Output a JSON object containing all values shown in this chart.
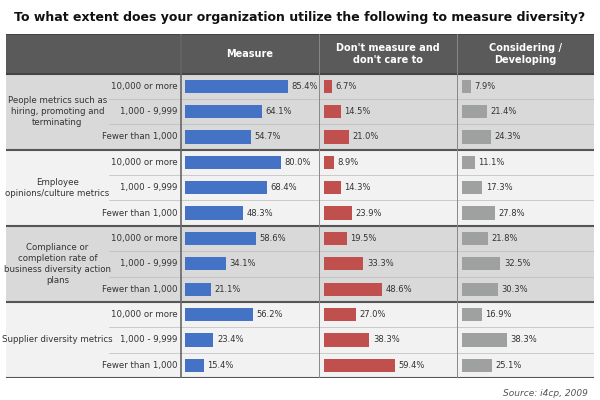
{
  "title": "To what extent does your organization utilize the following to measure diversity?",
  "header": [
    "Measure",
    "Don't measure and\ndon't care to",
    "Considering /\nDeveloping"
  ],
  "header_bg": "#5a5a5a",
  "categories": [
    "People metrics such as\nhiring, promoting and\nterminating",
    "Employee\nopinions/culture metrics",
    "Compliance or\ncompletion rate of\nbusiness diversity action\nplans",
    "Supplier diversity metrics"
  ],
  "size_labels": [
    "10,000 or more",
    "1,000 - 9,999",
    "Fewer than 1,000"
  ],
  "data": [
    [
      [
        85.4,
        6.7,
        7.9
      ],
      [
        64.1,
        14.5,
        21.4
      ],
      [
        54.7,
        21.0,
        24.3
      ]
    ],
    [
      [
        80.0,
        8.9,
        11.1
      ],
      [
        68.4,
        14.3,
        17.3
      ],
      [
        48.3,
        23.9,
        27.8
      ]
    ],
    [
      [
        58.6,
        19.5,
        21.8
      ],
      [
        34.1,
        33.3,
        32.5
      ],
      [
        21.1,
        48.6,
        30.3
      ]
    ],
    [
      [
        56.2,
        27.0,
        16.9
      ],
      [
        23.4,
        38.3,
        38.3
      ],
      [
        15.4,
        59.4,
        25.1
      ]
    ]
  ],
  "bar_colors": [
    "#4472c4",
    "#c0504d",
    "#9fa0a0"
  ],
  "section_bgs": [
    "#d9d9d9",
    "#f2f2f2",
    "#d9d9d9",
    "#f2f2f2"
  ],
  "bar_max": 90,
  "source": "Source: i4cp, 2009",
  "title_fontsize": 9,
  "label_fontsize": 6.5,
  "header_fontsize": 7,
  "bar_pct_fontsize": 6.0
}
